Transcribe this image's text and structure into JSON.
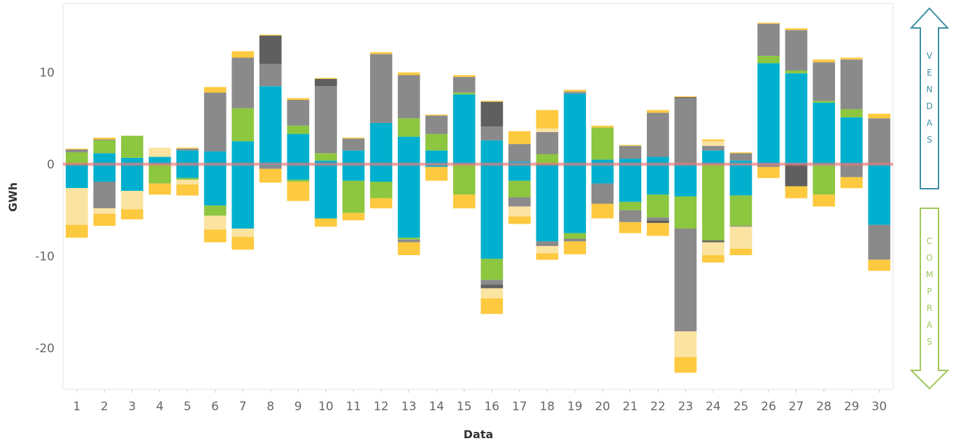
{
  "chart_data": {
    "type": "bar",
    "stacked": "diverging",
    "xlabel": "Data",
    "ylabel": "GWh",
    "ylim": [
      -24.5,
      17.5
    ],
    "y_ticks": [
      10,
      0,
      -10,
      -20
    ],
    "grid": false,
    "reference_line": 0,
    "categories": [
      "1",
      "2",
      "3",
      "4",
      "5",
      "6",
      "7",
      "8",
      "9",
      "10",
      "11",
      "12",
      "13",
      "14",
      "15",
      "16",
      "17",
      "18",
      "19",
      "20",
      "21",
      "22",
      "23",
      "24",
      "25",
      "26",
      "27",
      "28",
      "29",
      "30"
    ],
    "colors": {
      "blue": "#00b0ce",
      "green": "#8dc63f",
      "gray": "#8a8a8a",
      "darkgray": "#5f5f5f",
      "yellow": "#fdc93f",
      "lightyellow": "#fbe3a1",
      "reference": "#e8797a",
      "vendas": "#3c8fa0",
      "compras": "#a0c85a"
    },
    "series": [
      {
        "key": "blue",
        "positive": [
          0,
          1.2,
          0.7,
          0.8,
          1.5,
          1.4,
          2.5,
          8.5,
          3.3,
          0.4,
          1.5,
          4.5,
          3,
          1.5,
          7.6,
          2.6,
          0.3,
          0,
          7.7,
          0.5,
          0.6,
          0.8,
          0,
          1.5,
          0.4,
          11,
          9.9,
          6.7,
          5.1,
          0
        ],
        "negative": [
          2.6,
          1.9,
          2.9,
          0,
          1.5,
          4.5,
          7,
          0.2,
          1.7,
          5.9,
          1.8,
          1.9,
          8,
          0.3,
          0,
          10.3,
          1.8,
          8.4,
          7.5,
          2.1,
          4.1,
          3.3,
          3.5,
          0,
          3.4,
          0,
          0,
          0.1,
          0,
          6.6
        ]
      },
      {
        "key": "green",
        "positive": [
          1.3,
          1.4,
          2.4,
          0,
          0,
          0,
          3.6,
          0,
          0.9,
          0.8,
          0,
          0,
          2,
          1.8,
          0.2,
          0,
          0,
          1.1,
          0,
          3.5,
          0,
          0,
          0,
          0,
          0,
          0.8,
          0.3,
          0.2,
          0.9,
          0
        ],
        "negative": [
          0,
          0,
          0,
          2.1,
          0.2,
          1.1,
          0,
          0,
          0.2,
          0,
          3.5,
          1.8,
          0.2,
          0,
          3.3,
          2.3,
          1.8,
          0,
          0.6,
          0,
          0.9,
          2.5,
          3.5,
          8.3,
          3.3,
          0,
          0,
          3.2,
          0,
          0
        ]
      },
      {
        "key": "gray",
        "positive": [
          0.3,
          0.1,
          0,
          0,
          0.2,
          6.4,
          5.5,
          2.4,
          2.8,
          7.3,
          1.3,
          7.5,
          4.7,
          2,
          1.7,
          1.5,
          1.9,
          2.4,
          0.2,
          0,
          1.4,
          4.8,
          7.2,
          0.5,
          0.8,
          3.5,
          4.4,
          4.2,
          5.4,
          5
        ],
        "negative": [
          0,
          2.9,
          0,
          0,
          0,
          0,
          0,
          0.3,
          0,
          0,
          0,
          0,
          0.3,
          0,
          0,
          0.5,
          1,
          0.5,
          0.3,
          2.2,
          1.3,
          0.3,
          11.2,
          0,
          0.1,
          0.3,
          0,
          0,
          1.4,
          3.8
        ]
      },
      {
        "key": "darkgray",
        "positive": [
          0,
          0,
          0,
          0,
          0,
          0,
          0,
          3.1,
          0,
          0.8,
          0,
          0,
          0,
          0,
          0,
          2.7,
          0,
          0,
          0,
          0,
          0,
          0,
          0.1,
          0,
          0,
          0,
          0,
          0,
          0,
          0
        ],
        "negative": [
          0,
          0,
          0,
          0,
          0,
          0,
          0,
          0,
          0,
          0,
          0,
          0,
          0,
          0,
          0,
          0.4,
          0,
          0,
          0,
          0,
          0,
          0.3,
          0,
          0.2,
          0,
          0,
          2.4,
          0,
          0,
          0
        ]
      },
      {
        "key": "lightyellow",
        "positive": [
          0,
          0,
          0,
          1,
          0,
          0,
          0,
          0,
          0,
          0,
          0,
          0,
          0,
          0,
          0,
          0,
          0,
          0.4,
          0,
          0,
          0,
          0,
          0,
          0.5,
          0,
          0,
          0,
          0,
          0,
          0
        ],
        "negative": [
          4,
          0.6,
          2,
          0,
          0.5,
          1.5,
          0.9,
          0,
          0,
          0,
          0,
          0,
          0,
          0,
          0,
          1.1,
          1.1,
          0.8,
          0,
          0,
          0,
          0,
          2.8,
          1.4,
          2.4,
          0,
          0,
          0,
          0,
          0
        ]
      },
      {
        "key": "yellow",
        "positive": [
          0.1,
          0.2,
          0,
          0,
          0.1,
          0.6,
          0.7,
          0.1,
          0.2,
          0.1,
          0.1,
          0.2,
          0.3,
          0.1,
          0.2,
          0.1,
          1.4,
          2,
          0.2,
          0.2,
          0.1,
          0.3,
          0.1,
          0.2,
          0.1,
          0.1,
          0.2,
          0.3,
          0.2,
          0.5
        ],
        "negative": [
          1.4,
          1.3,
          1.1,
          1.2,
          1.2,
          1.4,
          1.4,
          1.5,
          2.1,
          0.9,
          0.8,
          1.1,
          1.4,
          1.5,
          1.5,
          1.7,
          0.8,
          0.7,
          1.4,
          1.6,
          1.2,
          1.4,
          1.7,
          0.8,
          0.7,
          1.2,
          1.3,
          1.3,
          1.2,
          1.2
        ]
      }
    ],
    "side_arrows": {
      "top_letters": [
        "V",
        "E",
        "N",
        "D",
        "A",
        "S"
      ],
      "bottom_letters": [
        "C",
        "O",
        "M",
        "P",
        "R",
        "A",
        "S"
      ]
    }
  }
}
